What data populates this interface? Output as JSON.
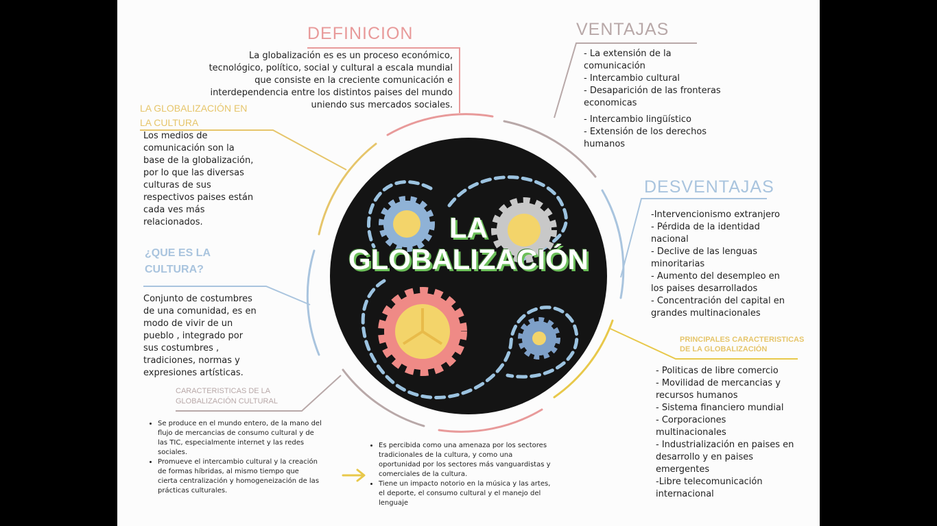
{
  "palette": {
    "definicion": "#e89a9a",
    "ventajas": "#b8a8a8",
    "desventajas": "#a9c4de",
    "cultura": "#e6c56a",
    "amarillo": "#e8c84a",
    "circulo": "#141414",
    "titulo_verde": "#6cbf5a"
  },
  "center": {
    "line1": "LA",
    "line2": "GLOBALIZACIÓN"
  },
  "definicion": {
    "heading": "DEFINICION",
    "lines": [
      "La globalización es es un proceso económico,",
      "tecnológico, político, social y cultural a escala mundial",
      "que consiste en la creciente comunicación e",
      "interdependencia entre los distintos paises del mundo",
      "uniendo sus mercados sociales."
    ]
  },
  "ventajas": {
    "heading": "VENTAJAS",
    "lines": [
      "- La extensión de la",
      "  comunicación",
      "- Intercambio cultural",
      "- Desaparición de las fronteras",
      "economicas",
      "",
      "- Intercambio lingüístico",
      "- Extensión de los derechos",
      "  humanos"
    ]
  },
  "desventajas": {
    "heading": "DESVENTAJAS",
    "lines": [
      "-Intervencionismo extranjero",
      "- Pérdida de la identidad",
      "  nacional",
      "- Declive de las lenguas",
      "  minoritarias",
      "- Aumento del desempleo en",
      "  los paises desarrollados",
      "- Concentración del capital en",
      "  grandes multinacionales"
    ]
  },
  "cultura": {
    "heading_line1": "LA  GLOBALIZACIÓN  EN",
    "heading_line2": "LA CULTURA",
    "lines": [
      "Los medios de",
      "comunicación son la",
      "base de la globalización,",
      "por lo que las diversas",
      "culturas de sus",
      "respectivos paises están",
      "cada ves más",
      "relacionados."
    ]
  },
  "que_es_cultura": {
    "heading_line1": "¿QUE ES LA",
    "heading_line2": "CULTURA?",
    "lines": [
      "Conjunto de costumbres",
      "de una comunidad, es en",
      "modo de vivir de un",
      "pueblo , integrado por",
      "sus costumbres ,",
      "tradiciones, normas y",
      "expresiones artísticas."
    ]
  },
  "caracteristicas_cultural": {
    "heading_line1": "CARACTERISTICAS DE LA",
    "heading_line2": "GLOBALIZACIÓN CULTURAL",
    "bullets_left": [
      [
        "Se produce en el mundo entero, de la mano del",
        "flujo de mercancias de consumo cultural y de",
        "las TIC, especialmente internet y las redes",
        "sociales."
      ],
      [
        "Promueve el intercambio cultural y la creación",
        "de formas híbridas, al mismo tiempo que",
        "cierta centralización y homogeneización de las",
        "prácticas culturales."
      ]
    ],
    "bullets_right": [
      [
        "Es percibida como una amenaza por los sectores",
        "tradicionales de la cultura, y como una",
        "oportunidad por los sectores más vanguardistas y",
        "comerciales de la cultura."
      ],
      [
        "Tiene un impacto notorio en la música y las artes,",
        "el deporte, el consumo cultural y el manejo del",
        "lenguaje"
      ]
    ]
  },
  "principales": {
    "heading_line1": "PRINCIPALES CARACTERISTICAS",
    "heading_line2": "DE LA GLOBALIZACIÓN",
    "lines": [
      "- Politicas de libre comercio",
      "- Movilidad de mercancias y",
      "recursos humanos",
      "- Sistema financiero mundial",
      "- Corporaciones",
      "multinacionales",
      "- Industrialización en paises en",
      "desarrollo y en paises",
      "emergentes",
      "-Libre telecomunicación",
      "internacional"
    ]
  }
}
